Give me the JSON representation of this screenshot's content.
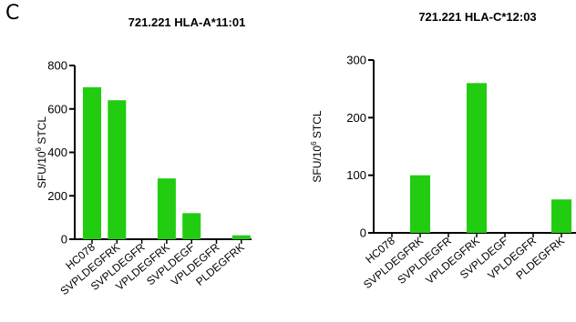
{
  "panel_letter": "C",
  "colors": {
    "bar": "#22cc11",
    "axis": "#000000"
  },
  "chart_data": [
    {
      "type": "bar",
      "title": "721.221 HLA-A*11:01",
      "ylabel": "SFU/10^6 STCL",
      "ylabel_base": "SFU/10",
      "ylabel_sup": "6",
      "ylabel_tail": " STCL",
      "categories": [
        "HC078",
        "SVPLDEGFRK",
        "SVPLDEGFR",
        "VPLDEGFRK",
        "SVPLDEGF",
        "VPLDEGFR",
        "PLDEGFRK"
      ],
      "values": [
        700,
        640,
        0,
        280,
        120,
        0,
        18
      ],
      "ylim": [
        0,
        800
      ],
      "yticks": [
        "0",
        "200",
        "400",
        "600",
        "800"
      ],
      "grid": false
    },
    {
      "type": "bar",
      "title": "721.221 HLA-C*12:03",
      "ylabel": "SFU/10^6 STCL",
      "ylabel_base": "SFU/10",
      "ylabel_sup": "6",
      "ylabel_tail": " STCL",
      "categories": [
        "HC078",
        "SVPLDEGFRK",
        "SVPLDEGFR",
        "VPLDEGFRK",
        "SVPLDEGF",
        "VPLDEGFR",
        "PLDEGFRK"
      ],
      "values": [
        0,
        100,
        0,
        260,
        0,
        0,
        58
      ],
      "ylim": [
        0,
        300
      ],
      "yticks": [
        "0",
        "100",
        "200",
        "300"
      ],
      "grid": false
    }
  ]
}
